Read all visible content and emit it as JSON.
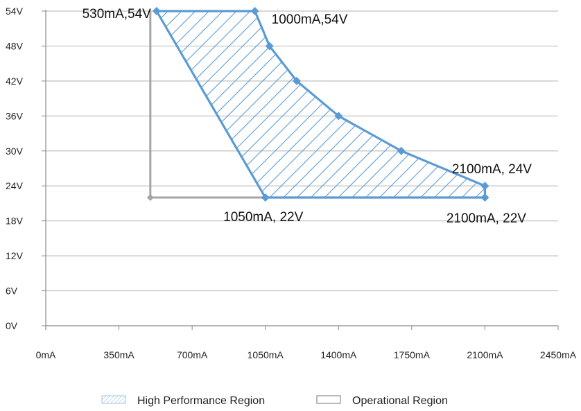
{
  "chart_data": {
    "type": "area",
    "title": "",
    "xlabel": "",
    "ylabel": "",
    "x_unit": "mA",
    "y_unit": "V",
    "xlim": [
      0,
      2450
    ],
    "ylim": [
      0,
      54
    ],
    "x_ticks": [
      "0mA",
      "350mA",
      "700mA",
      "1050mA",
      "1400mA",
      "1750mA",
      "2100mA",
      "2450mA"
    ],
    "y_ticks": [
      "0V",
      "6V",
      "12V",
      "18V",
      "24V",
      "30V",
      "36V",
      "42V",
      "48V",
      "54V"
    ],
    "x_tick_values": [
      0,
      350,
      700,
      1050,
      1400,
      1750,
      2100,
      2450
    ],
    "y_tick_values": [
      0,
      6,
      12,
      18,
      24,
      30,
      36,
      42,
      48,
      54
    ],
    "grid": "horizontal",
    "legend_position": "bottom",
    "series": [
      {
        "name": "High Performance Region",
        "pattern": "diagonal-hatch",
        "color": "#5b9bd5",
        "points": [
          {
            "x": 530,
            "y": 54
          },
          {
            "x": 1000,
            "y": 54
          },
          {
            "x": 1070,
            "y": 48
          },
          {
            "x": 1200,
            "y": 42
          },
          {
            "x": 1400,
            "y": 36
          },
          {
            "x": 1700,
            "y": 30
          },
          {
            "x": 2100,
            "y": 24
          },
          {
            "x": 2100,
            "y": 22
          },
          {
            "x": 1050,
            "y": 22
          }
        ]
      },
      {
        "name": "Operational Region",
        "color": "#a5a5a5",
        "points": [
          {
            "x": 500,
            "y": 54
          },
          {
            "x": 500,
            "y": 22
          },
          {
            "x": 1050,
            "y": 22
          }
        ]
      }
    ],
    "annotations": [
      {
        "text": "530mA,54V",
        "x": 530,
        "y": 54,
        "anchor": "left-of-point"
      },
      {
        "text": "1000mA,54V",
        "x": 1000,
        "y": 54,
        "anchor": "right-below"
      },
      {
        "text": "1050mA, 22V",
        "x": 1050,
        "y": 22,
        "anchor": "below"
      },
      {
        "text": "2100mA, 24V",
        "x": 2100,
        "y": 24,
        "anchor": "above"
      },
      {
        "text": "2100mA, 22V",
        "x": 2100,
        "y": 22,
        "anchor": "below"
      }
    ]
  }
}
